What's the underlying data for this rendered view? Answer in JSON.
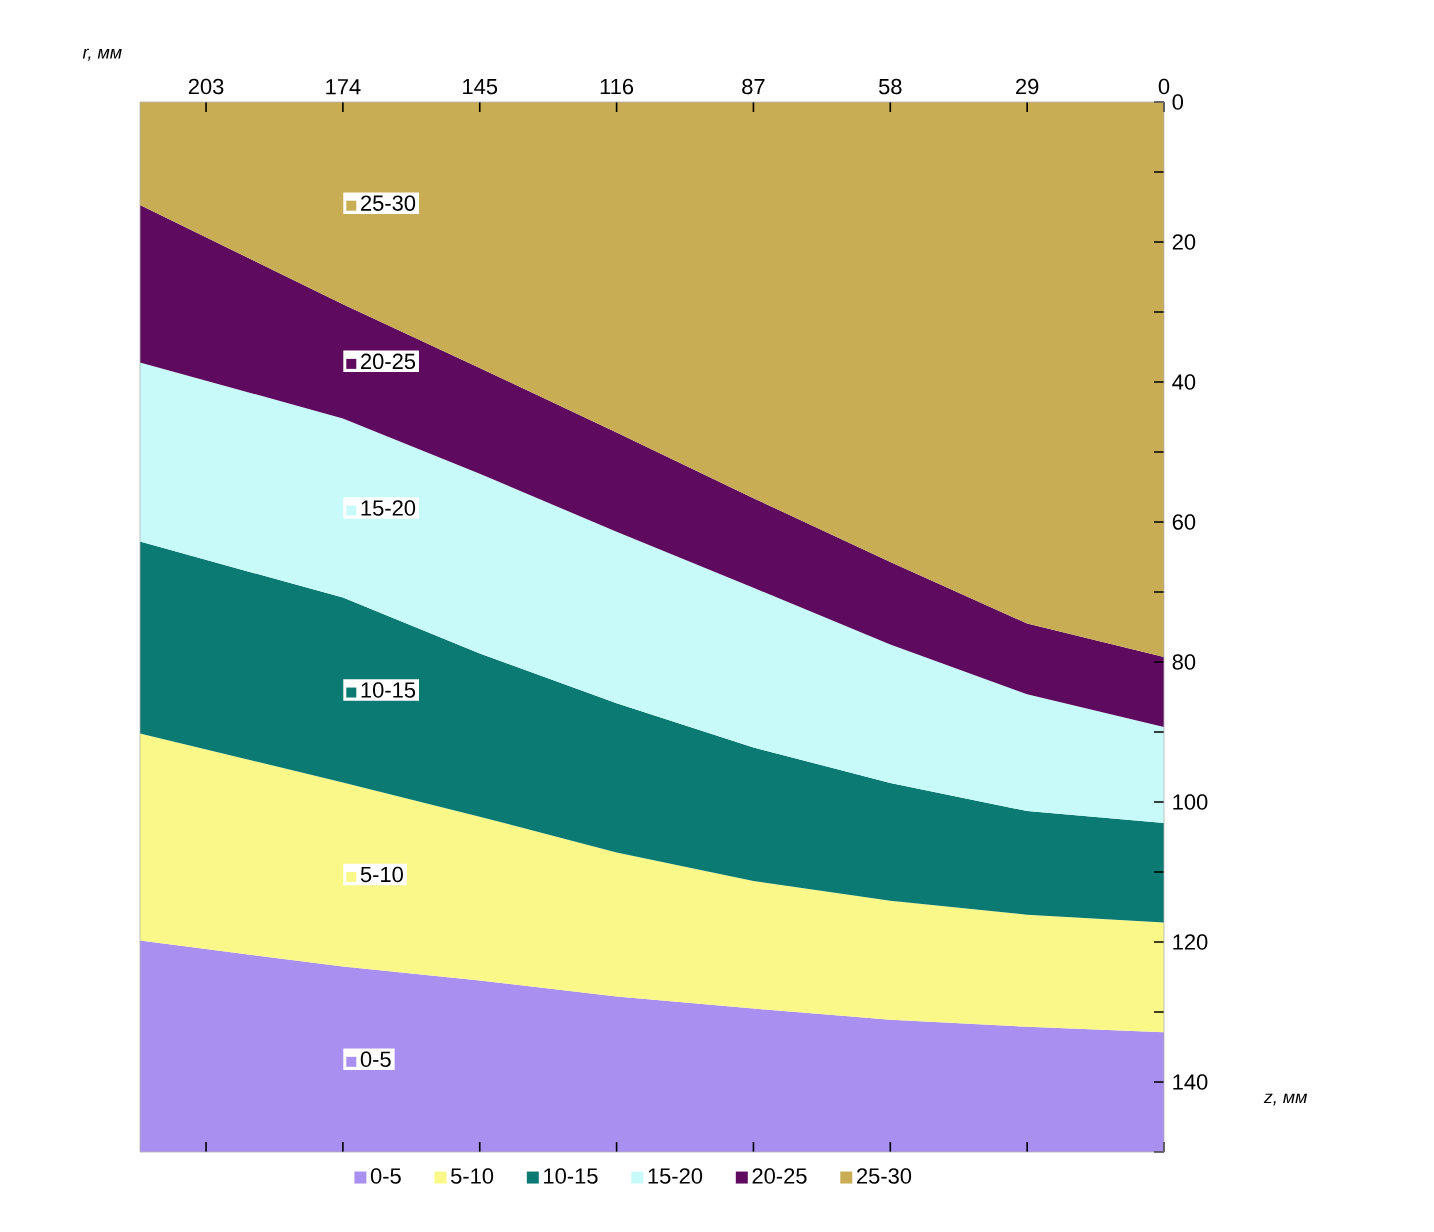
{
  "chart_data": {
    "type": "area",
    "stacked": true,
    "xlabel": "z, мм",
    "ylabel": "r, мм",
    "x": [
      217,
      174,
      145,
      116,
      87,
      58,
      29,
      0
    ],
    "xlim": [
      217,
      0
    ],
    "xticks": [
      203,
      174,
      145,
      116,
      87,
      58,
      29,
      0
    ],
    "ylim": [
      150,
      0
    ],
    "yticks": [
      0,
      {
        "value": 10,
        "label": null
      },
      20,
      {
        "value": 30,
        "label": null
      },
      40,
      {
        "value": 50,
        "label": null
      },
      60,
      {
        "value": 70,
        "label": null
      },
      80,
      {
        "value": 90,
        "label": null
      },
      100,
      {
        "value": 110,
        "label": null
      },
      120,
      {
        "value": 130,
        "label": null
      },
      140,
      {
        "value": 150,
        "label": null
      }
    ],
    "legend": "bottom",
    "grid": false,
    "series": [
      {
        "name": "25-30",
        "color": "#c9ad55",
        "values": [
          14.7,
          28.9,
          38.0,
          47.2,
          56.6,
          65.7,
          74.5,
          79.3
        ]
      },
      {
        "name": "20-25",
        "color": "#5e0a5e",
        "values": [
          22.5,
          16.3,
          15.1,
          14.2,
          12.8,
          11.8,
          10.1,
          10.0
        ]
      },
      {
        "name": "15-20",
        "color": "#c8fafa",
        "values": [
          25.6,
          25.6,
          25.7,
          24.5,
          22.8,
          19.8,
          16.7,
          13.7
        ]
      },
      {
        "name": "10-15",
        "color": "#0b7a72",
        "values": [
          27.4,
          26.4,
          23.3,
          21.3,
          19.1,
          16.8,
          14.8,
          14.2
        ]
      },
      {
        "name": "5-10",
        "color": "#fbf88a",
        "values": [
          29.6,
          26.3,
          23.4,
          20.6,
          18.2,
          17.0,
          16.0,
          15.7
        ]
      },
      {
        "name": "0-5",
        "color": "#a98ff0",
        "values": [
          30.2,
          26.5,
          24.5,
          22.2,
          20.5,
          18.9,
          17.9,
          17.1
        ]
      }
    ]
  }
}
